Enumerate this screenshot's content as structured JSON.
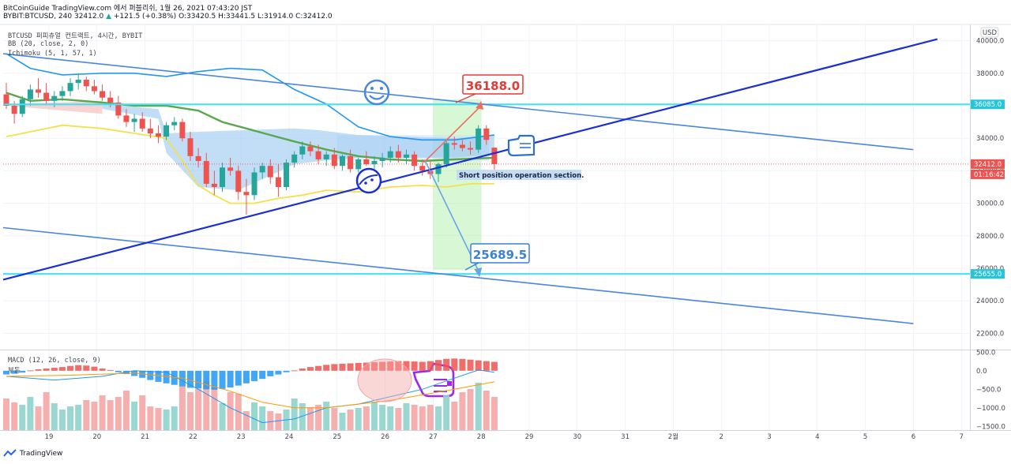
{
  "header": {
    "line1": "BitCoinGuide TradingView.com 에서 퍼블리쉬, 1월 26, 2021 07:43:20 JST",
    "symbol": "BYBIT:BTCUSD, 240",
    "last": "32412.0",
    "change": "+121.5 (+0.38%)",
    "ohlc": "O:33420.5 H:33441.5 L:31914.0 C:32412.0"
  },
  "legend": {
    "title": "BTCUSD 퍼피츄얼 컨트랙트, 4시간, BYBIT",
    "bb": "BB (20, close, 2, 0)",
    "ichimoku": "Ichimoku (5, 1, 57, 1)",
    "macd": "MACD (12, 26, close, 9)",
    "macd_sub": "부동"
  },
  "currency": "USD",
  "annotations": {
    "target_up": "36188.0",
    "target_down": "25689.5",
    "note": "Short position operation section."
  },
  "footer": "TradingView",
  "chart_data": {
    "type": "candlestick",
    "price_axis": {
      "ticks": [
        22000,
        24000,
        26000,
        28000,
        30000,
        32000,
        34000,
        36000,
        38000,
        40000
      ],
      "ylim": [
        21000,
        41000
      ]
    },
    "price_labels": [
      {
        "text": "36085.0",
        "value": 36085,
        "color": "#26c6da"
      },
      {
        "text": "32412.0",
        "value": 32412,
        "color": "#ef5350"
      },
      {
        "text": "01:16:42",
        "value": 31780,
        "color": "#ef5350"
      },
      {
        "text": "25655.0",
        "value": 25655,
        "color": "#26c6da"
      }
    ],
    "macd_axis": {
      "ticks": [
        500,
        0,
        -500,
        -1000,
        -1500
      ],
      "labels": [
        "500.0",
        "0.0",
        "−500.0",
        "−1000.0",
        "−1500.0"
      ],
      "ylim": [
        -1600,
        550
      ]
    },
    "time_axis": {
      "labels": [
        "19",
        "20",
        "21",
        "22",
        "23",
        "24",
        "25",
        "26",
        "27",
        "28",
        "29",
        "30",
        "31",
        "2월",
        "2",
        "3",
        "4",
        "5",
        "6",
        "7"
      ],
      "day_offset": [
        0,
        1,
        2,
        3,
        4,
        5,
        6,
        7,
        8,
        9,
        10,
        11,
        12,
        13,
        14,
        15,
        16,
        17,
        18,
        19
      ]
    },
    "candles": [
      [
        36700,
        37400,
        35800,
        36000
      ],
      [
        36000,
        36300,
        34900,
        35500
      ],
      [
        35500,
        36600,
        35300,
        36400
      ],
      [
        36400,
        37300,
        36000,
        37000
      ],
      [
        37000,
        37700,
        36500,
        36800
      ],
      [
        36800,
        37400,
        36100,
        36300
      ],
      [
        36300,
        36900,
        35900,
        36600
      ],
      [
        36600,
        37200,
        36300,
        36900
      ],
      [
        36900,
        37700,
        36600,
        37400
      ],
      [
        37400,
        38000,
        37000,
        37600
      ],
      [
        37600,
        37800,
        36900,
        37200
      ],
      [
        37200,
        37600,
        36700,
        36900
      ],
      [
        36900,
        37300,
        36300,
        36500
      ],
      [
        36500,
        36900,
        35900,
        36200
      ],
      [
        36200,
        36600,
        35200,
        35400
      ],
      [
        35400,
        35800,
        34700,
        35000
      ],
      [
        35000,
        35500,
        34400,
        35200
      ],
      [
        35200,
        35600,
        34400,
        34600
      ],
      [
        34600,
        35200,
        34000,
        34300
      ],
      [
        34300,
        34800,
        33700,
        34100
      ],
      [
        34100,
        35000,
        33900,
        34800
      ],
      [
        34800,
        35300,
        34500,
        35000
      ],
      [
        35000,
        35200,
        33800,
        34000
      ],
      [
        34000,
        34400,
        32600,
        32900
      ],
      [
        32900,
        33400,
        32200,
        32600
      ],
      [
        32600,
        33100,
        31000,
        31200
      ],
      [
        31200,
        32000,
        30500,
        31000
      ],
      [
        31000,
        32500,
        30700,
        32200
      ],
      [
        32200,
        32800,
        31700,
        32000
      ],
      [
        32000,
        32300,
        30200,
        30700
      ],
      [
        30700,
        31500,
        29300,
        30500
      ],
      [
        30500,
        32200,
        30200,
        31900
      ],
      [
        31900,
        32500,
        31500,
        32300
      ],
      [
        32300,
        32700,
        31200,
        31600
      ],
      [
        31600,
        32400,
        30400,
        31000
      ],
      [
        31000,
        32700,
        30800,
        32500
      ],
      [
        32500,
        33200,
        32200,
        33000
      ],
      [
        33000,
        33800,
        32700,
        33500
      ],
      [
        33500,
        33800,
        32900,
        33200
      ],
      [
        33200,
        33600,
        32400,
        32700
      ],
      [
        32700,
        33200,
        32300,
        33000
      ],
      [
        33000,
        33400,
        32100,
        32300
      ],
      [
        32300,
        33000,
        32000,
        32900
      ],
      [
        32900,
        33300,
        31900,
        32100
      ],
      [
        32100,
        32800,
        31900,
        32700
      ],
      [
        32700,
        33200,
        32300,
        32400
      ],
      [
        32400,
        32900,
        32100,
        32600
      ],
      [
        32600,
        33100,
        32200,
        32800
      ],
      [
        32800,
        33500,
        32500,
        33200
      ],
      [
        33200,
        33600,
        32500,
        32800
      ],
      [
        32800,
        33300,
        32400,
        33000
      ],
      [
        33000,
        33200,
        32000,
        32300
      ],
      [
        32300,
        32700,
        31700,
        32000
      ],
      [
        32000,
        32600,
        31500,
        31800
      ],
      [
        31800,
        32500,
        31300,
        32400
      ],
      [
        32400,
        33900,
        32200,
        33700
      ],
      [
        33700,
        34100,
        33300,
        33600
      ],
      [
        33600,
        33900,
        33200,
        33400
      ],
      [
        33400,
        33800,
        33000,
        33300
      ],
      [
        33300,
        34800,
        33100,
        34600
      ],
      [
        34600,
        34800,
        33600,
        33900
      ],
      [
        33420,
        33441,
        31914,
        32412
      ]
    ],
    "bb_upper": [
      [
        0,
        39200
      ],
      [
        3,
        38300
      ],
      [
        7,
        37900
      ],
      [
        12,
        38000
      ],
      [
        16,
        38000
      ],
      [
        20,
        37800
      ],
      [
        24,
        38100
      ],
      [
        28,
        38300
      ],
      [
        32,
        38200
      ],
      [
        36,
        37000
      ],
      [
        40,
        36100
      ],
      [
        44,
        34700
      ],
      [
        48,
        34100
      ],
      [
        52,
        33900
      ],
      [
        56,
        33900
      ],
      [
        61,
        34200
      ]
    ],
    "bb_basis": [
      [
        0,
        36800
      ],
      [
        3,
        36300
      ],
      [
        7,
        36400
      ],
      [
        12,
        36200
      ],
      [
        16,
        36000
      ],
      [
        20,
        36000
      ],
      [
        24,
        35700
      ],
      [
        27,
        35000
      ],
      [
        30,
        34600
      ],
      [
        33,
        34200
      ],
      [
        36,
        33800
      ],
      [
        40,
        33300
      ],
      [
        44,
        32900
      ],
      [
        48,
        32700
      ],
      [
        52,
        32600
      ],
      [
        56,
        32700
      ],
      [
        61,
        32800
      ]
    ],
    "bb_lower": [
      [
        0,
        34100
      ],
      [
        3,
        34400
      ],
      [
        7,
        34800
      ],
      [
        12,
        34600
      ],
      [
        16,
        34300
      ],
      [
        20,
        34000
      ],
      [
        22,
        32600
      ],
      [
        24,
        31100
      ],
      [
        26,
        30500
      ],
      [
        28,
        30000
      ],
      [
        31,
        30000
      ],
      [
        34,
        30300
      ],
      [
        37,
        30500
      ],
      [
        40,
        30800
      ],
      [
        44,
        30700
      ],
      [
        48,
        31000
      ],
      [
        52,
        31100
      ],
      [
        55,
        31000
      ],
      [
        58,
        31200
      ],
      [
        61,
        31200
      ]
    ],
    "cloud": {
      "top": [
        [
          12,
          36100
        ],
        [
          19,
          35800
        ],
        [
          20,
          34300
        ],
        [
          24,
          34400
        ],
        [
          36,
          34600
        ],
        [
          39,
          34500
        ],
        [
          44,
          34200
        ],
        [
          56,
          34000
        ],
        [
          61,
          34200
        ]
      ],
      "bottom": [
        [
          12,
          35800
        ],
        [
          19,
          35200
        ],
        [
          20,
          33100
        ],
        [
          24,
          31000
        ],
        [
          29,
          30800
        ],
        [
          36,
          32400
        ],
        [
          41,
          32700
        ],
        [
          44,
          32800
        ],
        [
          56,
          32800
        ],
        [
          61,
          33000
        ]
      ]
    },
    "trendlines": [
      {
        "name": "descending-upper",
        "p1": [
          0,
          39200
        ],
        "p2": [
          18,
          33300
        ],
        "color": "#4a86e0"
      },
      {
        "name": "descending-lower",
        "p1": [
          0,
          28500
        ],
        "p2": [
          18,
          22600
        ],
        "color": "#4a86e0"
      },
      {
        "name": "ascending-support",
        "p1": [
          0,
          25300
        ],
        "p2": [
          18.5,
          40100
        ],
        "color": "#1a2fd4"
      }
    ],
    "hlines": [
      {
        "name": "resistance",
        "value": 36085
      },
      {
        "name": "support",
        "value": 25655
      }
    ],
    "forecast": {
      "origin": [
        8,
        32500
      ],
      "up": [
        9,
        36000
      ],
      "down": [
        9,
        25700
      ]
    },
    "zone": {
      "x1": 8,
      "x2": 9,
      "y1": 25900,
      "y2": 36400
    },
    "macd_hist": [
      -100,
      -80,
      -50,
      10,
      40,
      60,
      80,
      100,
      130,
      150,
      140,
      110,
      60,
      20,
      -40,
      -90,
      -140,
      -190,
      -250,
      -300,
      -340,
      -380,
      -420,
      -460,
      -480,
      -500,
      -510,
      -490,
      -450,
      -400,
      -340,
      -280,
      -220,
      -150,
      -100,
      -40,
      10,
      60,
      100,
      130,
      160,
      180,
      190,
      200,
      210,
      220,
      230,
      240,
      250,
      260,
      260,
      250,
      240,
      260,
      290,
      320,
      330,
      320,
      300,
      280,
      260,
      240
    ],
    "macd_line": [
      [
        0,
        -150
      ],
      [
        6,
        -250
      ],
      [
        12,
        -150
      ],
      [
        16,
        0
      ],
      [
        20,
        -40
      ],
      [
        24,
        -500
      ],
      [
        28,
        -1000
      ],
      [
        32,
        -1400
      ],
      [
        36,
        -1300
      ],
      [
        40,
        -1000
      ],
      [
        44,
        -900
      ],
      [
        48,
        -700
      ],
      [
        52,
        -500
      ],
      [
        56,
        -200
      ],
      [
        59,
        20
      ],
      [
        61,
        -40
      ]
    ],
    "signal_line": [
      [
        0,
        -150
      ],
      [
        8,
        -120
      ],
      [
        16,
        -60
      ],
      [
        22,
        -200
      ],
      [
        28,
        -550
      ],
      [
        32,
        -850
      ],
      [
        36,
        -1000
      ],
      [
        40,
        -1000
      ],
      [
        44,
        -900
      ],
      [
        48,
        -800
      ],
      [
        52,
        -650
      ],
      [
        56,
        -500
      ],
      [
        61,
        -300
      ]
    ],
    "volume": [
      4,
      3.5,
      3.2,
      4.2,
      3,
      4.8,
      3.4,
      2.6,
      3,
      3.2,
      3.8,
      3.6,
      4.4,
      3.8,
      4.2,
      5,
      3.6,
      4.4,
      3,
      2.8,
      2.6,
      3,
      5.6,
      4.8,
      5.2,
      6.2,
      5.4,
      3.4,
      4.8,
      4.6,
      2.4,
      3.5,
      3,
      2.4,
      2.1,
      2.6,
      4,
      3.4,
      2.9,
      3.2,
      3.6,
      2.8,
      2.2,
      2.6,
      2.8,
      3,
      3.6,
      3.2,
      3,
      2.8,
      3.4,
      3.2,
      3,
      3.2,
      3,
      4.4,
      3.6,
      4.8,
      5.2,
      6,
      5,
      4.2
    ],
    "colors": {
      "up": "#26a69a",
      "down": "#ef5350",
      "ema": "#5aa84e",
      "tenkan": "#f5e04a",
      "bb": "#2196f3",
      "hline": "#3fe3f5",
      "zone": "#b8f0b0",
      "note_bg": "#c6dcf5",
      "purple": "#9c27f0",
      "up_target": "#e53935",
      "down_target": "#3b82d6"
    }
  }
}
